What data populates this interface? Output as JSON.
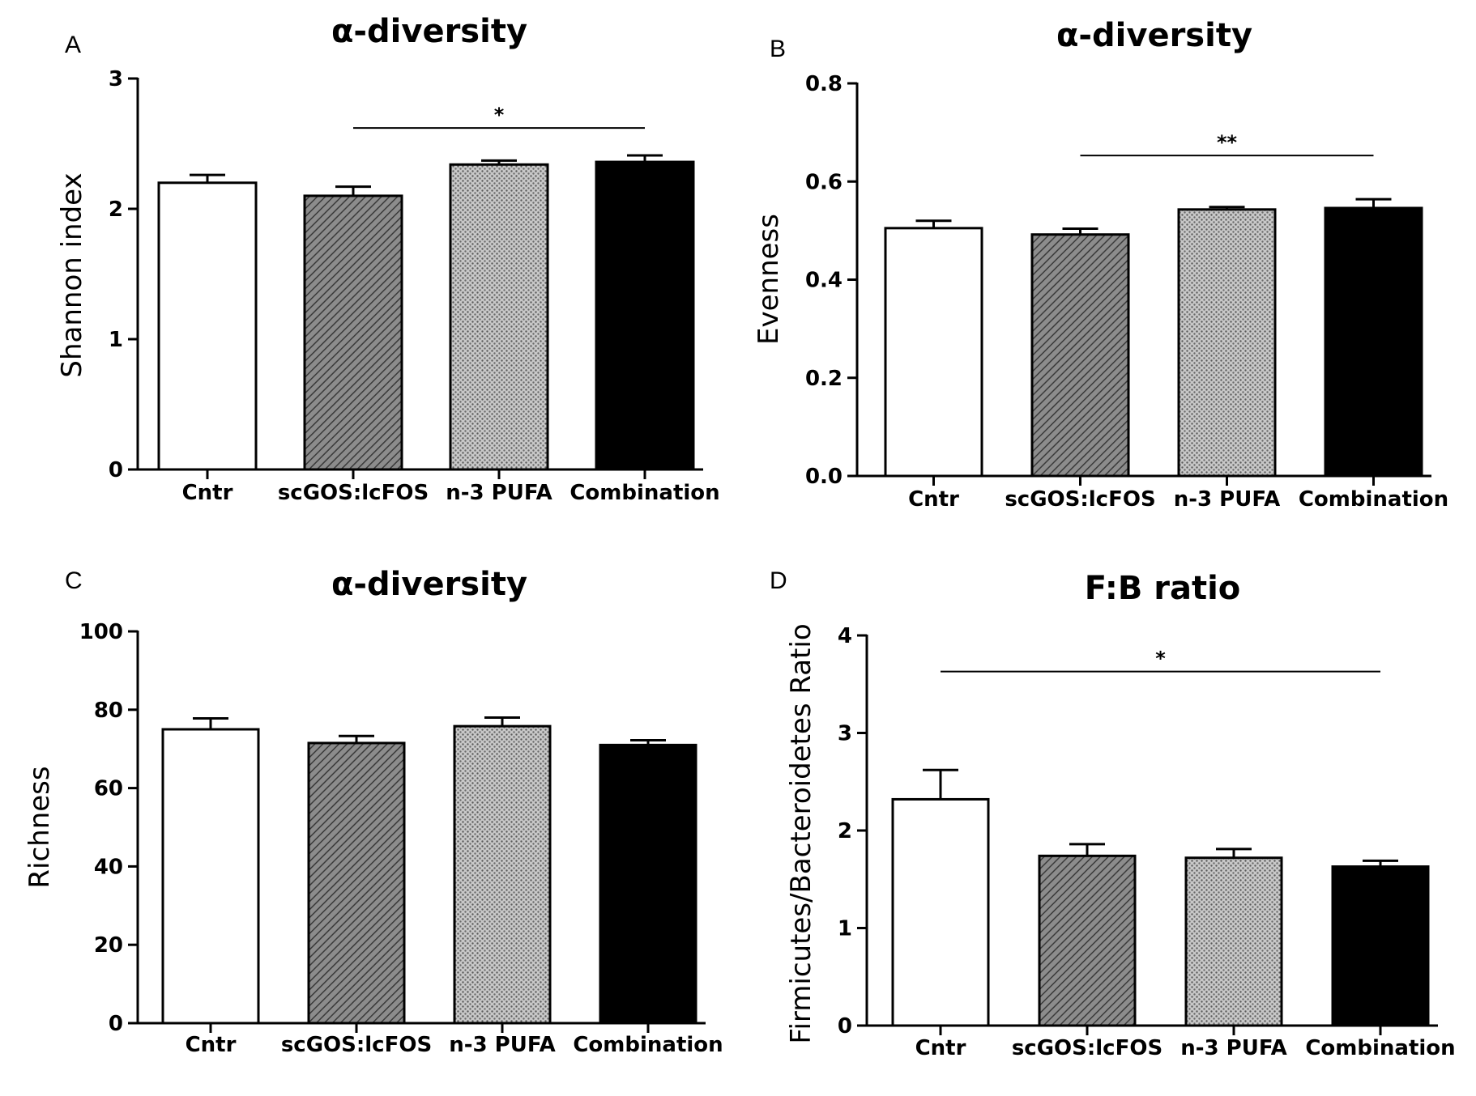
{
  "chart_data": [
    {
      "panel": "A",
      "type": "bar",
      "title": "α-diversity",
      "ylabel": "Shannon index",
      "xlabel": "",
      "categories": [
        "Cntr",
        "scGOS:lcFOS",
        "n-3 PUFA",
        "Combination"
      ],
      "values": [
        2.2,
        2.1,
        2.34,
        2.36
      ],
      "errors": [
        0.06,
        0.07,
        0.03,
        0.05
      ],
      "ylim": [
        0,
        3
      ],
      "yticks": [
        "0",
        "1",
        "2",
        "3"
      ],
      "yticks_values": [
        0,
        1,
        2,
        3
      ],
      "significance": [
        {
          "from": 1,
          "to": 3,
          "label": "*",
          "y": 2.62
        }
      ]
    },
    {
      "panel": "B",
      "type": "bar",
      "title": "α-diversity",
      "ylabel": "Evenness",
      "xlabel": "",
      "categories": [
        "Cntr",
        "scGOS:lcFOS",
        "n-3 PUFA",
        "Combination"
      ],
      "values": [
        0.505,
        0.492,
        0.543,
        0.546
      ],
      "errors": [
        0.015,
        0.012,
        0.005,
        0.018
      ],
      "ylim": [
        0,
        0.8
      ],
      "yticks": [
        "0.0",
        "0.2",
        "0.4",
        "0.6",
        "0.8"
      ],
      "yticks_values": [
        0,
        0.2,
        0.4,
        0.6,
        0.8
      ],
      "significance": [
        {
          "from": 1,
          "to": 3,
          "label": "**",
          "y": 0.653
        }
      ]
    },
    {
      "panel": "C",
      "type": "bar",
      "title": "α-diversity",
      "ylabel": "Richness",
      "xlabel": "",
      "categories": [
        "Cntr",
        "scGOS:lcFOS",
        "n-3 PUFA",
        "Combination"
      ],
      "values": [
        75,
        71.5,
        75.8,
        71
      ],
      "errors": [
        2.8,
        1.8,
        2.2,
        1.2
      ],
      "ylim": [
        0,
        100
      ],
      "yticks": [
        "0",
        "20",
        "40",
        "60",
        "80",
        "100"
      ],
      "yticks_values": [
        0,
        20,
        40,
        60,
        80,
        100
      ],
      "significance": []
    },
    {
      "panel": "D",
      "type": "bar",
      "title": "F:B ratio",
      "ylabel": "Firmicutes/Bacteroidetes Ratio",
      "xlabel": "",
      "categories": [
        "Cntr",
        "scGOS:lcFOS",
        "n-3 PUFA",
        "Combination"
      ],
      "values": [
        2.32,
        1.74,
        1.72,
        1.63
      ],
      "errors": [
        0.3,
        0.12,
        0.09,
        0.06
      ],
      "ylim": [
        0,
        4
      ],
      "yticks": [
        "0",
        "1",
        "2",
        "3",
        "4"
      ],
      "yticks_values": [
        0,
        1,
        2,
        3,
        4
      ],
      "significance": [
        {
          "from": 0,
          "to": 3,
          "label": "*",
          "y": 3.63
        }
      ]
    }
  ],
  "colors": {
    "cntr": "#ffffff",
    "scgos": "#9a9a9a",
    "pufa": "#bdbdbd",
    "combination": "#000000",
    "axis": "#000000"
  }
}
